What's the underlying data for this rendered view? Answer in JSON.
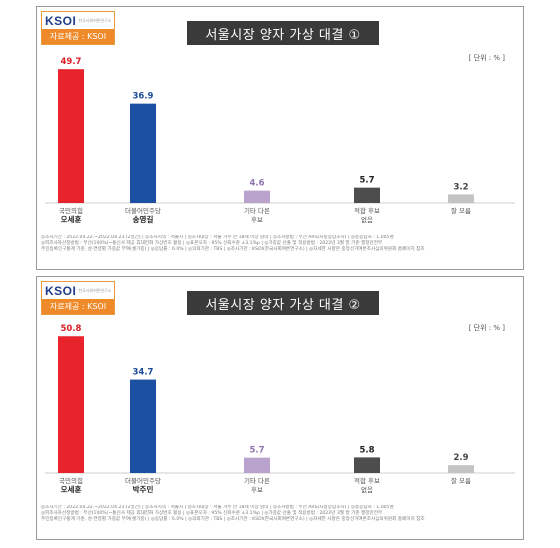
{
  "panels": [
    {
      "logo": "KSOI",
      "logo_sub": "한국사회여론연구소",
      "source": "자료제공 : KSOI",
      "title": "서울시장 양자 가상 대결 ①",
      "unit": "[ 단위 : % ]",
      "chart_data": {
        "type": "bar",
        "categories": [
          [
            "국민의힘",
            "오세훈"
          ],
          [
            "더불어민주당",
            "송영길"
          ],
          [
            "기타 다른",
            "후보"
          ],
          [
            "적합 후보",
            "없음"
          ],
          [
            "잘 모름"
          ]
        ],
        "values": [
          49.7,
          36.9,
          4.6,
          5.7,
          3.2
        ],
        "colors": [
          "#e8232b",
          "#1b50a3",
          "#b9a3cc",
          "#4d4d4d",
          "#c4c4c4"
        ],
        "label_colors": [
          "#d81f26",
          "#1b4b99",
          "#8e73ad",
          "#222222",
          "#444444"
        ],
        "ylim": [
          0,
          52
        ]
      },
      "footnote": [
        "◎조사기간 : 2022.04.22.~2022.04.23.(2일간)  | ◎조사지역 : 서울시  | ◎조사대상 : 서울 거주 만 18세 이상 남녀  | ◎조사방법 : 무선 ARS(자동응답조사)  | ◎총응답자 : 1,005명",
        "◎피조사자선정방법 : 무선(100%)~통신사 제공 휴대전화 가상번호 활용  | ◎표본오차 : 95% 신뢰수준 ±3.1%p  | ◎가중값 산출 및 적용방법 : 2022년 3월 말 기준 행정안전부",
        "주민등록인구통계 기준, 성·연령별 가중값 부여(셀가중)  | ◎응답률 : 6.0%  | ◎의뢰기관 : TBS  | ◎조사기관 : KSOI(한국사회여론연구소)  | ◎자세한 사항은 중앙선거여론조사심의위원회 홈페이지 참조"
      ]
    },
    {
      "logo": "KSOI",
      "logo_sub": "한국사회여론연구소",
      "source": "자료제공 : KSOI",
      "title": "서울시장 양자 가상 대결 ②",
      "unit": "[ 단위 : % ]",
      "chart_data": {
        "type": "bar",
        "categories": [
          [
            "국민의힘",
            "오세훈"
          ],
          [
            "더불어민주당",
            "박주민"
          ],
          [
            "기타 다른",
            "후보"
          ],
          [
            "적합 후보",
            "없음"
          ],
          [
            "잘 모름"
          ]
        ],
        "values": [
          50.8,
          34.7,
          5.7,
          5.8,
          2.9
        ],
        "colors": [
          "#e8232b",
          "#1b50a3",
          "#b9a3cc",
          "#4d4d4d",
          "#c4c4c4"
        ],
        "label_colors": [
          "#d81f26",
          "#1b4b99",
          "#8e73ad",
          "#222222",
          "#444444"
        ],
        "ylim": [
          0,
          52
        ]
      },
      "footnote": [
        "◎조사기간 : 2022.04.22.~2022.04.23.(2일간)  | ◎조사지역 : 서울시  | ◎조사대상 : 서울 거주 만 18세 이상 남녀  | ◎조사방법 : 무선 ARS(자동응답조사)  | ◎총응답자 : 1,005명",
        "◎피조사자선정방법 : 무선(100%)~통신사 제공 휴대전화 가상번호 활용  | ◎표본오차 : 95% 신뢰수준 ±3.1%p  | ◎가중값 산출 및 적용방법 : 2022년 3월 말 기준 행정안전부",
        "주민등록인구통계 기준, 성·연령별 가중값 부여(셀가중)  | ◎응답률 : 6.0%  | ◎의뢰기관 : TBS  | ◎조사기관 : KSOI(한국사회여론연구소)  | ◎자세한 사항은 중앙선거여론조사심의위원회 홈페이지 참조"
      ]
    }
  ]
}
